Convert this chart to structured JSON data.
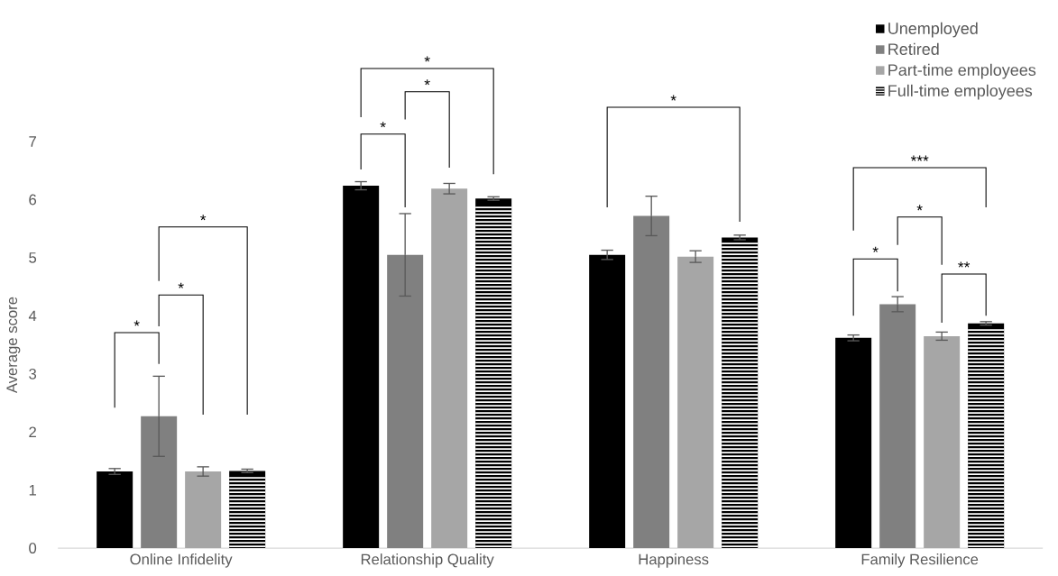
{
  "chart_data": {
    "type": "bar",
    "ylabel": "Average score",
    "categories": [
      "Online Infidelity",
      "Relationship Quality",
      "Happiness",
      "Family Resilience"
    ],
    "series": [
      {
        "name": "Unemployed",
        "color": "#000000",
        "values": [
          1.32,
          6.24,
          5.05,
          3.62
        ],
        "errors": [
          0.05,
          0.07,
          0.08,
          0.05
        ]
      },
      {
        "name": "Retired",
        "color": "#808080",
        "values": [
          2.27,
          5.05,
          5.72,
          4.2
        ],
        "errors": [
          0.69,
          0.71,
          0.34,
          0.13
        ]
      },
      {
        "name": "Part-time employees",
        "color": "#a6a6a6",
        "values": [
          1.32,
          6.19,
          5.02,
          3.65
        ],
        "errors": [
          0.08,
          0.09,
          0.1,
          0.07
        ]
      },
      {
        "name": "Full-time employees",
        "color": "#000000",
        "values": [
          1.33,
          6.02,
          5.35,
          3.87
        ],
        "errors": [
          0.03,
          0.03,
          0.04,
          0.03
        ]
      }
    ],
    "ylim": [
      0,
      7
    ],
    "yticks": [
      0,
      1,
      2,
      3,
      4,
      5,
      6,
      7
    ],
    "legend": "top right",
    "annotations": [
      "*",
      "*",
      "*",
      "*",
      "*",
      "*",
      "*",
      "***",
      "*",
      "*",
      "**"
    ]
  }
}
